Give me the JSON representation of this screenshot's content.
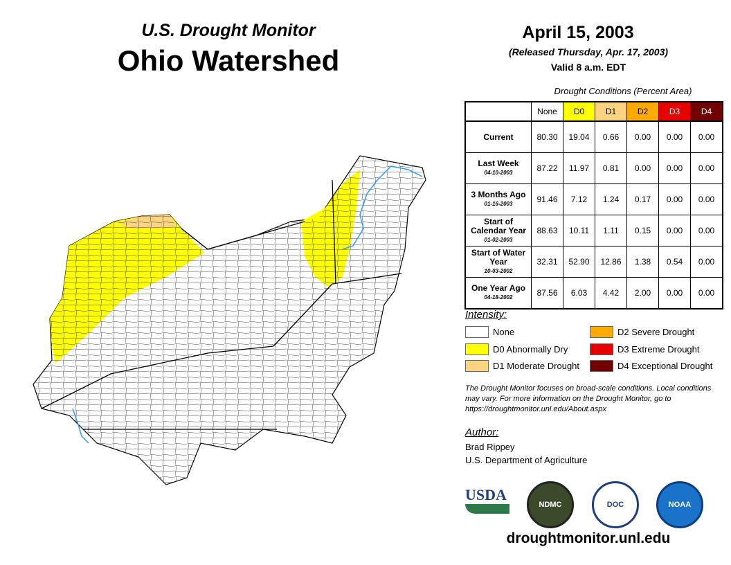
{
  "header": {
    "subtitle": "U.S. Drought Monitor",
    "title": "Ohio Watershed",
    "date": "April 15, 2003",
    "released": "(Released Thursday, Apr. 17, 2003)",
    "valid": "Valid 8 a.m. EDT"
  },
  "table": {
    "caption": "Drought Conditions (Percent Area)",
    "columns": [
      "None",
      "D0",
      "D1",
      "D2",
      "D3",
      "D4"
    ],
    "rows": [
      {
        "label": "Current",
        "date": "",
        "values": [
          "80.30",
          "19.04",
          "0.66",
          "0.00",
          "0.00",
          "0.00"
        ]
      },
      {
        "label": "Last Week",
        "date": "04-10-2003",
        "values": [
          "87.22",
          "11.97",
          "0.81",
          "0.00",
          "0.00",
          "0.00"
        ]
      },
      {
        "label": "3 Months Ago",
        "date": "01-16-2003",
        "values": [
          "91.46",
          "7.12",
          "1.24",
          "0.17",
          "0.00",
          "0.00"
        ]
      },
      {
        "label": "Start of Calendar Year",
        "date": "01-02-2003",
        "values": [
          "88.63",
          "10.11",
          "1.11",
          "0.15",
          "0.00",
          "0.00"
        ]
      },
      {
        "label": "Start of Water Year",
        "date": "10-03-2002",
        "values": [
          "32.31",
          "52.90",
          "12.86",
          "1.38",
          "0.54",
          "0.00"
        ]
      },
      {
        "label": "One Year Ago",
        "date": "04-18-2002",
        "values": [
          "87.56",
          "6.03",
          "4.42",
          "2.00",
          "0.00",
          "0.00"
        ]
      }
    ]
  },
  "legend": {
    "title": "Intensity:",
    "items": [
      {
        "label": "None",
        "color": "#ffffff"
      },
      {
        "label": "D0 Abnormally Dry",
        "color": "#ffff00"
      },
      {
        "label": "D1 Moderate Drought",
        "color": "#fcd37f"
      },
      {
        "label": "D2 Severe Drought",
        "color": "#ffaa00"
      },
      {
        "label": "D3 Extreme Drought",
        "color": "#e60000"
      },
      {
        "label": "D4 Exceptional Drought",
        "color": "#730000"
      }
    ]
  },
  "note": "The Drought Monitor focuses on broad-scale conditions. Local conditions may vary. For more information on the Drought Monitor, go to https://droughtmonitor.unl.edu/About.aspx",
  "author": {
    "heading": "Author:",
    "name": "Brad Rippey",
    "agency": "U.S. Department of Agriculture"
  },
  "logos": {
    "usda": "USDA",
    "ndmc": "NDMC",
    "doc": "DOC",
    "noaa": "NOAA"
  },
  "url": "droughtmonitor.unl.edu"
}
